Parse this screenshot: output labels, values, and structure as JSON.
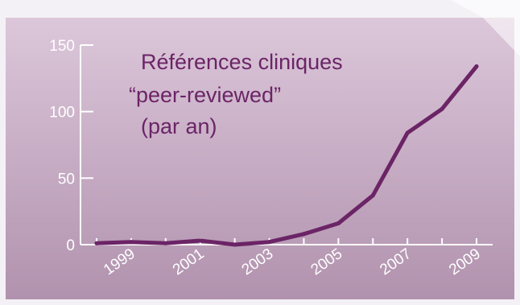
{
  "chart_data": {
    "type": "line",
    "title_lines": [
      "Références cliniques",
      "“peer-reviewed”",
      "(par an)"
    ],
    "xlabel": "",
    "ylabel": "",
    "x": [
      1998,
      1999,
      2000,
      2001,
      2002,
      2003,
      2004,
      2005,
      2006,
      2007,
      2008,
      2009
    ],
    "values": [
      1,
      2,
      1,
      3,
      0,
      2,
      8,
      16,
      37,
      84,
      102,
      134
    ],
    "xlim": [
      1998,
      2009
    ],
    "ylim": [
      0,
      150
    ],
    "yticks": [
      0,
      50,
      100,
      150
    ],
    "xtick_labels": [
      "1999",
      "2001",
      "2003",
      "2005",
      "2007",
      "2009"
    ],
    "grid": false,
    "colors": {
      "line": "#6b2466",
      "text": "#6b2466",
      "axis": "#ffffff",
      "background_top": "#dcc7da",
      "background_bottom": "#b192ae"
    }
  }
}
